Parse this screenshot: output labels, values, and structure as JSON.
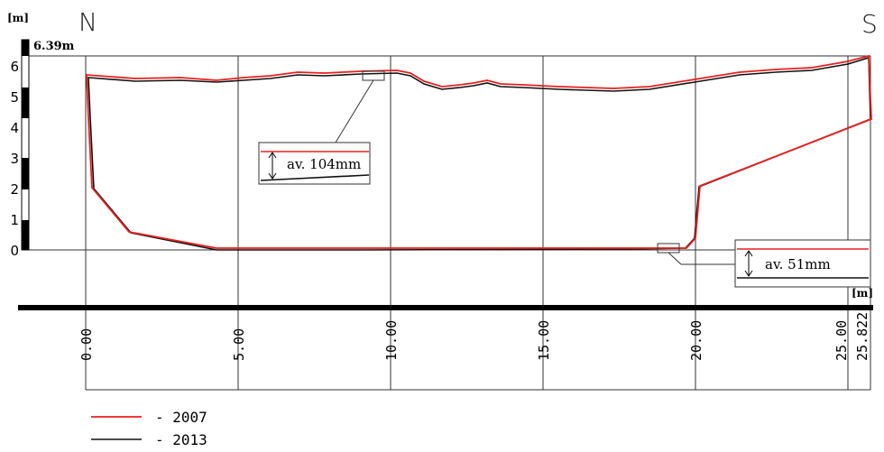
{
  "directions": {
    "north": "N",
    "south": "S"
  },
  "units": {
    "y_unit": "[m]",
    "x_unit": "[m]"
  },
  "max_height_label": "6.39m",
  "y_ticks": [
    "0",
    "1",
    "2",
    "3",
    "4",
    "5",
    "6"
  ],
  "x_ticks": [
    "0.00",
    "5.00",
    "10.00",
    "15.00",
    "20.00",
    "25.00",
    "25.822"
  ],
  "callouts": {
    "crown": {
      "label": "av. 104mm"
    },
    "floor": {
      "label": "av.  51mm"
    }
  },
  "legend": [
    {
      "label": "- 2007",
      "color": "#e8201e"
    },
    {
      "label": "- 2013",
      "color": "#111111"
    }
  ],
  "colors": {
    "profile_2007": "#e8201e",
    "profile_2013": "#111111",
    "grid": "#333333"
  }
}
